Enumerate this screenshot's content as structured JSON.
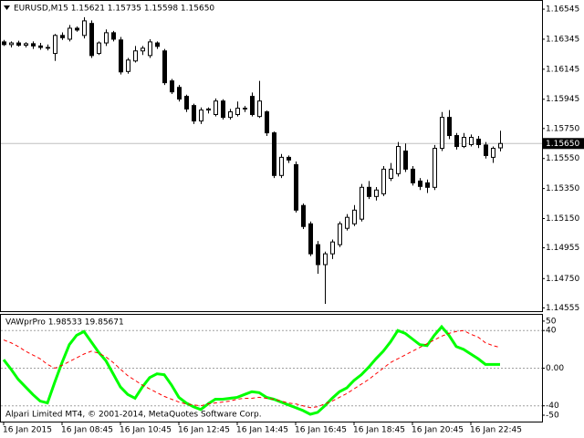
{
  "chart_data": [
    {
      "type": "candlestick",
      "title": "EURUSD,M15  1.15621 1.15735 1.15598 1.15650",
      "categories": [
        "16 Jan 2015",
        null,
        null,
        null,
        null,
        null,
        null,
        null,
        "16 Jan 08:45",
        null,
        null,
        null,
        null,
        null,
        null,
        null,
        "16 Jan 10:45",
        null,
        null,
        null,
        null,
        null,
        null,
        null,
        "16 Jan 12:45",
        null,
        null,
        null,
        null,
        null,
        null,
        null,
        "16 Jan 14:45",
        null,
        null,
        null,
        null,
        null,
        null,
        null,
        "16 Jan 16:45",
        null,
        null,
        null,
        null,
        null,
        null,
        null,
        "16 Jan 18:45",
        null,
        null,
        null,
        null,
        null,
        null,
        null,
        "16 Jan 20:45",
        null,
        null,
        null,
        null,
        null,
        null,
        null,
        "16 Jan 22:45",
        null,
        null,
        null,
        null
      ],
      "open": [
        1.16327,
        1.16309,
        1.1632,
        1.16305,
        1.16315,
        1.163,
        1.1629,
        1.1625,
        1.1637,
        1.16345,
        1.16418,
        1.1637,
        1.1645,
        1.1625,
        1.1632,
        1.16388,
        1.1634,
        1.1613,
        1.162,
        1.16267,
        1.16236,
        1.1632,
        1.16267,
        1.16067,
        1.16024,
        1.15964,
        1.15903,
        1.158,
        1.15873,
        1.15843,
        1.15933,
        1.15824,
        1.15843,
        1.15885,
        1.15964,
        1.1583,
        1.15861,
        1.15721,
        1.15437,
        1.15558,
        1.15509,
        1.15237,
        1.15115,
        1.14976,
        1.14843,
        1.14915,
        1.14976,
        1.15085,
        1.15115,
        1.15146,
        1.15358,
        1.15297,
        1.15315,
        1.15418,
        1.15449,
        1.156,
        1.15479,
        1.154,
        1.15388,
        1.15358,
        1.15618,
        1.15824,
        1.15703,
        1.1563,
        1.15643,
        1.15679,
        1.1564,
        1.15558,
        1.15621
      ],
      "high": [
        1.1634,
        1.1633,
        1.16335,
        1.16325,
        1.1633,
        1.1632,
        1.1631,
        1.1638,
        1.1639,
        1.1644,
        1.1643,
        1.16491,
        1.1647,
        1.1633,
        1.1641,
        1.164,
        1.1636,
        1.1622,
        1.163,
        1.163,
        1.16345,
        1.1633,
        1.1628,
        1.1608,
        1.1604,
        1.15975,
        1.15915,
        1.1589,
        1.1589,
        1.1595,
        1.15945,
        1.1588,
        1.1593,
        1.159,
        1.1599,
        1.16067,
        1.1587,
        1.1573,
        1.1558,
        1.1557,
        1.1553,
        1.1525,
        1.1513,
        1.15,
        1.1493,
        1.1501,
        1.1513,
        1.1518,
        1.1524,
        1.1538,
        1.154,
        1.1536,
        1.155,
        1.1552,
        1.1566,
        1.1565,
        1.155,
        1.1542,
        1.1541,
        1.1564,
        1.1586,
        1.15873,
        1.1572,
        1.1572,
        1.1571,
        1.157,
        1.1566,
        1.1563,
        1.15735
      ],
      "low": [
        1.163,
        1.1629,
        1.16295,
        1.1629,
        1.1628,
        1.16275,
        1.1627,
        1.162,
        1.1634,
        1.1633,
        1.16395,
        1.1635,
        1.1622,
        1.1624,
        1.163,
        1.1633,
        1.1611,
        1.16115,
        1.1619,
        1.1624,
        1.1622,
        1.1628,
        1.1604,
        1.1598,
        1.1593,
        1.1586,
        1.1578,
        1.1578,
        1.1585,
        1.1583,
        1.1581,
        1.1581,
        1.1583,
        1.1586,
        1.1583,
        1.1582,
        1.157,
        1.1542,
        1.1542,
        1.1552,
        1.1519,
        1.1508,
        1.149,
        1.14782,
        1.14582,
        1.1488,
        1.1496,
        1.1507,
        1.151,
        1.1513,
        1.1528,
        1.1527,
        1.153,
        1.154,
        1.1543,
        1.1546,
        1.1537,
        1.1534,
        1.1532,
        1.1534,
        1.156,
        1.1568,
        1.1561,
        1.1562,
        1.1563,
        1.1562,
        1.1555,
        1.15521,
        1.15598
      ],
      "close": [
        1.16309,
        1.1632,
        1.16305,
        1.16315,
        1.163,
        1.1629,
        1.16285,
        1.1637,
        1.16355,
        1.16418,
        1.16406,
        1.16467,
        1.16236,
        1.1632,
        1.16388,
        1.16345,
        1.16127,
        1.16206,
        1.16267,
        1.16285,
        1.16327,
        1.16297,
        1.16055,
        1.15994,
        1.15946,
        1.1588,
        1.158,
        1.15873,
        1.1588,
        1.15933,
        1.15824,
        1.15861,
        1.15885,
        1.1588,
        1.15843,
        1.15933,
        1.15721,
        1.15437,
        1.15558,
        1.1554,
        1.15206,
        1.15097,
        1.14915,
        1.14843,
        1.14915,
        1.14994,
        1.15115,
        1.15158,
        1.15206,
        1.15358,
        1.15297,
        1.1534,
        1.15479,
        1.15479,
        1.1563,
        1.15479,
        1.15388,
        1.15364,
        1.15358,
        1.15618,
        1.15824,
        1.15703,
        1.1563,
        1.15691,
        1.15691,
        1.15643,
        1.1557,
        1.15618,
        1.1565
      ],
      "colors": {
        "up": "#ffffff",
        "down": "#000000",
        "outline": "#000000"
      },
      "ylim": [
        1.14533,
        1.166
      ],
      "yticks": [
        1.16545,
        1.16345,
        1.16145,
        1.15945,
        {
          "value": 1.1575,
          "label": "1.15750"
        },
        {
          "value": 1.1555,
          "label": "1.15550"
        },
        {
          "value": 1.1535,
          "label": "1.15350"
        },
        {
          "value": 1.1515,
          "label": "1.15150"
        },
        1.14955,
        {
          "value": 1.1475,
          "label": "1.14750"
        },
        1.14555
      ],
      "current_price": {
        "value": 1.1565,
        "label": "1.15650"
      }
    },
    {
      "type": "line",
      "title": "VAWprPro 1.98533 19.85671",
      "series": [
        {
          "color": "#00ff00",
          "dashed": false,
          "values": [
            9,
            -1,
            -12,
            -20,
            -28,
            -35,
            -37,
            -15,
            6,
            25,
            35,
            39,
            28,
            17,
            8,
            -6,
            -20,
            -28,
            -32,
            -20,
            -10,
            -6,
            -7,
            -18,
            -31,
            -37,
            -41,
            -44,
            -38,
            -33,
            -33,
            -32,
            -31,
            -28,
            -25,
            -26,
            -31,
            -33,
            -36,
            -39,
            -42,
            -45,
            -49,
            -47,
            -40,
            -32,
            -25,
            -21,
            -13,
            -7,
            1,
            10,
            18,
            28,
            40,
            37,
            31,
            25,
            24,
            35,
            44,
            35,
            23,
            20,
            15,
            10,
            4,
            4,
            4
          ]
        },
        {
          "color": "#ff0000",
          "dashed": true,
          "values": [
            30,
            27,
            23,
            18,
            14,
            10,
            4,
            0,
            3,
            7,
            11,
            15,
            18,
            16,
            12,
            6,
            -1,
            -8,
            -13,
            -18,
            -22,
            -26,
            -30,
            -33,
            -36,
            -38,
            -39,
            -40,
            -38,
            -37,
            -36,
            -35,
            -33,
            -32,
            -32,
            -31,
            -32,
            -33,
            -35,
            -37,
            -38,
            -40,
            -42,
            -41,
            -38,
            -35,
            -31,
            -27,
            -22,
            -17,
            -12,
            -6,
            0,
            6,
            10,
            14,
            18,
            22,
            26,
            30,
            34,
            37,
            39,
            40,
            36,
            33,
            27,
            24,
            22
          ]
        }
      ],
      "ylim": [
        -55.8,
        56.7
      ],
      "yticks": [
        50,
        40,
        {
          "value": 0,
          "label": "0.00"
        },
        -40,
        -50
      ],
      "levels": [
        40,
        0,
        -40
      ],
      "footer": "Alpari Limited MT4, © 2001-2014, MetaQuotes Software Corp."
    }
  ]
}
